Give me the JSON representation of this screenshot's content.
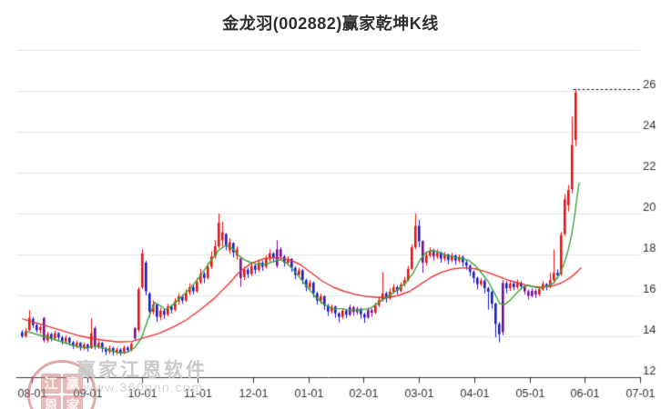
{
  "page": {
    "title": "金龙羽(002882)赢家乾坤K线"
  },
  "watermark": {
    "seal_chars": [
      "江",
      "赢",
      "恩",
      "家"
    ],
    "line1": "赢家江恩软件",
    "line2": "www.360gnn.com"
  },
  "chart_data": {
    "type": "candlestick",
    "title": "金龙羽(002882)赢家乾坤K线",
    "x_tick_labels": [
      "08-01",
      "09-01",
      "10-01",
      "11-01",
      "12-01",
      "01-01",
      "02-01",
      "03-01",
      "04-01",
      "05-01",
      "06-01",
      "07-01"
    ],
    "y_tick_labels": [
      26,
      24,
      22,
      20,
      18,
      16,
      14,
      12
    ],
    "y_grid_values": [
      14,
      16,
      18,
      20,
      22,
      24,
      26,
      28
    ],
    "ylim": [
      12,
      28
    ],
    "grid": true,
    "legend": "none",
    "dashed_high_line": 26.08,
    "colors": {
      "up": "#ee1111",
      "down": "#1a1ace",
      "special": "#7a0c96",
      "ma_fast_green": "#3ca43c",
      "ma_slow_red": "#e83333",
      "grid": "#e4e4e4",
      "axis": "#333333",
      "label": "#333333",
      "dashed": "#111111",
      "background": "#ffffff"
    },
    "candles": [
      [
        14.2,
        14.0,
        13.92,
        14.3
      ],
      [
        14.0,
        14.25,
        13.95,
        14.4
      ],
      [
        14.3,
        14.9,
        14.25,
        15.28
      ],
      [
        14.85,
        14.55,
        14.4,
        14.95
      ],
      [
        14.55,
        14.3,
        14.18,
        14.62
      ],
      [
        14.3,
        14.45,
        14.12,
        14.55
      ],
      [
        14.9,
        13.8,
        13.7,
        14.95
      ],
      [
        13.8,
        14.1,
        13.68,
        14.22
      ],
      [
        14.1,
        13.9,
        13.75,
        14.18
      ],
      [
        13.9,
        14.15,
        13.82,
        14.28
      ],
      [
        14.15,
        13.95,
        13.8,
        14.2
      ],
      [
        13.95,
        13.75,
        13.6,
        14.02
      ],
      [
        13.75,
        13.92,
        13.62,
        14.05
      ],
      [
        13.92,
        13.7,
        13.55,
        13.98
      ],
      [
        13.7,
        13.52,
        13.38,
        13.78
      ],
      [
        13.52,
        13.68,
        13.42,
        13.8
      ],
      [
        13.68,
        13.45,
        13.3,
        13.72
      ],
      [
        13.45,
        13.6,
        13.32,
        13.7
      ],
      [
        13.6,
        13.42,
        13.25,
        13.65
      ],
      [
        13.42,
        14.15,
        13.38,
        14.88
      ],
      [
        14.4,
        13.5,
        13.35,
        14.48
      ],
      [
        13.5,
        13.68,
        13.38,
        13.8
      ],
      [
        13.68,
        13.4,
        13.22,
        13.72
      ],
      [
        13.4,
        13.25,
        13.08,
        13.48
      ],
      [
        13.25,
        13.42,
        13.15,
        13.55
      ],
      [
        13.42,
        13.22,
        13.05,
        13.5
      ],
      [
        13.22,
        13.35,
        13.1,
        13.45
      ],
      [
        13.35,
        13.2,
        13.05,
        13.42
      ],
      [
        13.2,
        13.45,
        13.12,
        13.55
      ],
      [
        13.45,
        13.32,
        13.2,
        13.52
      ],
      [
        13.32,
        13.62,
        13.25,
        13.72
      ],
      [
        14.4,
        13.9,
        13.8,
        14.45
      ],
      [
        14.3,
        16.3,
        14.2,
        16.4
      ],
      [
        16.4,
        18.05,
        16.3,
        18.25
      ],
      [
        17.6,
        16.2,
        16.0,
        17.7
      ],
      [
        16.1,
        15.2,
        14.95,
        16.15
      ],
      [
        15.2,
        15.55,
        15.05,
        15.75
      ],
      [
        15.55,
        14.95,
        14.7,
        15.6
      ],
      [
        14.95,
        15.25,
        14.78,
        15.4
      ],
      [
        15.25,
        15.05,
        14.85,
        15.35
      ],
      [
        15.05,
        15.45,
        14.98,
        15.6
      ],
      [
        15.45,
        15.3,
        15.1,
        15.55
      ],
      [
        15.3,
        15.7,
        15.22,
        15.85
      ],
      [
        15.7,
        15.95,
        15.55,
        16.1
      ],
      [
        15.95,
        15.75,
        15.58,
        16.05
      ],
      [
        15.75,
        16.15,
        15.68,
        16.3
      ],
      [
        16.15,
        16.4,
        16.0,
        16.6
      ],
      [
        16.4,
        16.2,
        16.05,
        16.5
      ],
      [
        16.2,
        16.65,
        16.12,
        16.85
      ],
      [
        16.65,
        17.05,
        16.55,
        17.3
      ],
      [
        17.05,
        16.85,
        16.6,
        17.15
      ],
      [
        16.85,
        17.4,
        16.78,
        17.6
      ],
      [
        17.4,
        17.9,
        17.3,
        18.15
      ],
      [
        17.9,
        18.4,
        17.8,
        18.7
      ],
      [
        18.4,
        19.55,
        18.3,
        20.0
      ],
      [
        18.7,
        19.1,
        18.4,
        19.6
      ],
      [
        19.0,
        18.45,
        18.2,
        19.05
      ],
      [
        18.2,
        18.6,
        18.05,
        18.8
      ],
      [
        18.55,
        18.1,
        17.85,
        18.6
      ],
      [
        17.95,
        18.25,
        17.75,
        18.4
      ],
      [
        17.8,
        16.85,
        16.42,
        17.85
      ],
      [
        16.9,
        17.25,
        16.75,
        17.4
      ],
      [
        17.25,
        17.05,
        16.85,
        17.35
      ],
      [
        17.05,
        17.45,
        16.95,
        17.6
      ],
      [
        17.45,
        17.25,
        17.05,
        17.55
      ],
      [
        17.25,
        17.6,
        17.15,
        17.75
      ],
      [
        17.6,
        17.4,
        17.2,
        17.7
      ],
      [
        17.4,
        17.8,
        17.32,
        17.95
      ],
      [
        17.8,
        18.05,
        17.65,
        18.25
      ],
      [
        18.05,
        17.85,
        17.62,
        18.12
      ],
      [
        17.45,
        18.25,
        17.35,
        18.7
      ],
      [
        18.25,
        17.9,
        17.7,
        18.35
      ],
      [
        17.9,
        17.6,
        17.4,
        17.98
      ],
      [
        17.6,
        17.78,
        17.45,
        17.92
      ],
      [
        17.78,
        17.35,
        17.15,
        17.82
      ],
      [
        17.35,
        17.0,
        16.8,
        17.42
      ],
      [
        17.0,
        17.22,
        16.88,
        17.35
      ],
      [
        17.22,
        16.75,
        16.55,
        17.28
      ],
      [
        16.75,
        16.4,
        16.2,
        16.82
      ],
      [
        16.4,
        16.62,
        16.28,
        16.75
      ],
      [
        16.62,
        16.1,
        15.9,
        16.68
      ],
      [
        16.1,
        15.75,
        15.55,
        16.18
      ],
      [
        15.75,
        15.95,
        15.6,
        16.08
      ],
      [
        15.95,
        15.5,
        15.3,
        16.0
      ],
      [
        15.5,
        15.22,
        15.0,
        15.58
      ],
      [
        15.22,
        15.45,
        15.1,
        15.55
      ],
      [
        15.45,
        15.12,
        14.9,
        15.5
      ],
      [
        15.12,
        14.95,
        14.68,
        15.18
      ],
      [
        14.95,
        15.25,
        14.85,
        15.38
      ],
      [
        15.25,
        15.05,
        14.88,
        15.32
      ],
      [
        15.05,
        15.42,
        14.98,
        15.55
      ],
      [
        15.42,
        15.18,
        15.0,
        15.48
      ],
      [
        15.18,
        15.35,
        15.05,
        15.45
      ],
      [
        15.35,
        15.08,
        14.85,
        15.4
      ],
      [
        15.08,
        14.92,
        14.65,
        15.15
      ],
      [
        14.92,
        15.28,
        14.85,
        15.4
      ],
      [
        15.28,
        15.15,
        14.95,
        15.35
      ],
      [
        15.15,
        15.52,
        15.08,
        15.65
      ],
      [
        15.52,
        15.78,
        15.42,
        15.95
      ],
      [
        15.78,
        16.1,
        15.7,
        17.15
      ],
      [
        16.1,
        15.85,
        15.65,
        16.18
      ],
      [
        15.85,
        16.18,
        15.78,
        16.35
      ],
      [
        16.18,
        16.4,
        16.08,
        16.55
      ],
      [
        16.4,
        16.22,
        16.05,
        16.48
      ],
      [
        16.22,
        16.52,
        16.15,
        16.65
      ],
      [
        16.52,
        16.75,
        16.42,
        16.9
      ],
      [
        16.75,
        17.3,
        16.68,
        17.45
      ],
      [
        17.3,
        18.35,
        17.25,
        18.5
      ],
      [
        18.35,
        19.4,
        18.25,
        20.0
      ],
      [
        19.4,
        18.65,
        18.35,
        19.7
      ],
      [
        18.65,
        17.6,
        17.1,
        18.7
      ],
      [
        17.6,
        17.95,
        17.45,
        18.15
      ],
      [
        17.95,
        18.2,
        17.85,
        18.35
      ],
      [
        18.2,
        17.9,
        17.7,
        18.28
      ],
      [
        17.9,
        18.1,
        17.78,
        18.25
      ],
      [
        18.1,
        17.8,
        17.6,
        18.15
      ],
      [
        17.8,
        18.0,
        17.68,
        18.12
      ],
      [
        18.0,
        17.72,
        17.52,
        18.05
      ],
      [
        17.72,
        17.95,
        17.62,
        18.08
      ],
      [
        17.95,
        17.7,
        17.5,
        18.0
      ],
      [
        17.7,
        17.88,
        17.58,
        18.0
      ],
      [
        17.88,
        17.62,
        17.42,
        17.95
      ],
      [
        17.62,
        17.45,
        17.25,
        17.7
      ],
      [
        17.45,
        17.15,
        16.95,
        17.52
      ],
      [
        17.15,
        16.85,
        16.6,
        17.22
      ],
      [
        16.85,
        16.55,
        16.3,
        16.92
      ],
      [
        16.55,
        16.72,
        16.45,
        16.85
      ],
      [
        16.72,
        16.35,
        16.1,
        16.78
      ],
      [
        16.35,
        16.18,
        15.3,
        16.42
      ],
      [
        16.18,
        15.6,
        15.35,
        16.25
      ],
      [
        15.6,
        14.6,
        13.95,
        15.65
      ],
      [
        14.6,
        14.1,
        13.7,
        14.7
      ],
      [
        14.2,
        16.6,
        14.05,
        16.75
      ],
      [
        16.6,
        16.35,
        16.1,
        16.7
      ],
      [
        16.35,
        16.58,
        16.22,
        16.72
      ],
      [
        16.58,
        16.4,
        16.25,
        16.68
      ],
      [
        16.4,
        16.62,
        16.3,
        16.78
      ],
      [
        16.62,
        16.45,
        16.28,
        16.7
      ],
      [
        16.45,
        16.2,
        16.05,
        16.52
      ],
      [
        16.2,
        15.98,
        15.8,
        16.28
      ],
      [
        15.98,
        16.22,
        15.9,
        16.35
      ],
      [
        16.22,
        16.05,
        15.88,
        16.3
      ],
      [
        16.05,
        16.3,
        15.95,
        16.42
      ],
      [
        16.3,
        16.55,
        16.22,
        16.68
      ],
      [
        16.55,
        16.42,
        16.25,
        16.6
      ],
      [
        16.42,
        16.75,
        16.35,
        17.1
      ],
      [
        16.75,
        17.1,
        16.65,
        18.25
      ],
      [
        17.1,
        17.0,
        16.82,
        17.28
      ],
      [
        17.05,
        18.95,
        16.95,
        19.1
      ],
      [
        19.0,
        20.7,
        18.9,
        20.95
      ],
      [
        20.4,
        21.15,
        20.1,
        21.4
      ],
      [
        21.2,
        23.35,
        21.0,
        24.75
      ],
      [
        23.6,
        25.92,
        23.3,
        26.08
      ]
    ],
    "purple_indices": [
      6,
      20,
      31,
      60,
      70,
      71,
      90,
      91,
      92,
      95,
      96,
      110,
      113,
      132,
      138,
      139,
      140,
      141
    ],
    "ma_fast_green_points": [
      [
        1,
        14.25
      ],
      [
        4,
        14.1
      ],
      [
        7.8,
        13.9
      ],
      [
        11.5,
        13.7
      ],
      [
        15.2,
        13.5
      ],
      [
        17.8,
        13.42
      ],
      [
        19.8,
        13.52
      ],
      [
        22,
        13.45
      ],
      [
        24.5,
        13.3
      ],
      [
        27,
        13.18
      ],
      [
        29,
        13.22
      ],
      [
        31,
        13.45
      ],
      [
        32.8,
        13.9
      ],
      [
        34,
        14.5
      ],
      [
        35.2,
        15.1
      ],
      [
        36.5,
        15.65
      ],
      [
        38,
        15.5
      ],
      [
        39.5,
        15.3
      ],
      [
        41.5,
        15.55
      ],
      [
        44,
        15.95
      ],
      [
        46.5,
        16.4
      ],
      [
        49,
        16.95
      ],
      [
        51.5,
        17.6
      ],
      [
        54,
        18.2
      ],
      [
        56,
        18.45
      ],
      [
        57.8,
        18.3
      ],
      [
        59.5,
        17.95
      ],
      [
        61.5,
        17.7
      ],
      [
        64,
        17.55
      ],
      [
        66.5,
        17.5
      ],
      [
        69,
        17.65
      ],
      [
        71,
        17.75
      ],
      [
        73,
        17.55
      ],
      [
        75.5,
        17.05
      ],
      [
        78,
        16.5
      ],
      [
        80.5,
        15.95
      ],
      [
        83,
        15.55
      ],
      [
        85.5,
        15.35
      ],
      [
        88,
        15.35
      ],
      [
        90.5,
        15.25
      ],
      [
        93,
        15.3
      ],
      [
        95.5,
        15.35
      ],
      [
        98,
        15.65
      ],
      [
        100.5,
        15.95
      ],
      [
        103,
        16.25
      ],
      [
        105.5,
        16.65
      ],
      [
        107.5,
        17.1
      ],
      [
        109.2,
        17.7
      ],
      [
        111,
        18.1
      ],
      [
        112.8,
        18.2
      ],
      [
        114.8,
        18.1
      ],
      [
        116.8,
        17.95
      ],
      [
        119,
        17.85
      ],
      [
        121,
        17.8
      ],
      [
        122.8,
        17.7
      ],
      [
        124.5,
        17.45
      ],
      [
        126.2,
        17.1
      ],
      [
        128,
        16.7
      ],
      [
        129.8,
        16.1
      ],
      [
        131.2,
        15.6
      ],
      [
        132.5,
        15.55
      ],
      [
        134,
        15.75
      ],
      [
        135.8,
        16.1
      ],
      [
        137.5,
        16.4
      ],
      [
        139,
        16.5
      ],
      [
        140.8,
        16.4
      ],
      [
        142.5,
        16.35
      ],
      [
        144.2,
        16.45
      ],
      [
        146,
        16.6
      ],
      [
        147.5,
        17.0
      ],
      [
        148.8,
        17.5
      ],
      [
        150,
        18.2
      ],
      [
        151,
        19.0
      ],
      [
        151.8,
        19.9
      ],
      [
        152.5,
        20.9
      ],
      [
        153,
        21.5
      ]
    ],
    "ma_slow_red_points": [
      [
        0.2,
        14.85
      ],
      [
        4,
        14.65
      ],
      [
        7.8,
        14.45
      ],
      [
        11.5,
        14.25
      ],
      [
        15.2,
        14.05
      ],
      [
        19,
        13.9
      ],
      [
        22.8,
        13.8
      ],
      [
        26.5,
        13.72
      ],
      [
        30.2,
        13.75
      ],
      [
        34,
        13.95
      ],
      [
        37.8,
        14.15
      ],
      [
        41.5,
        14.45
      ],
      [
        45.2,
        14.8
      ],
      [
        49,
        15.3
      ],
      [
        52.8,
        15.85
      ],
      [
        56.5,
        16.5
      ],
      [
        59.5,
        17.1
      ],
      [
        62.8,
        17.55
      ],
      [
        66.5,
        17.8
      ],
      [
        70.2,
        17.85
      ],
      [
        73.5,
        17.75
      ],
      [
        76.5,
        17.5
      ],
      [
        79.5,
        17.1
      ],
      [
        82.5,
        16.7
      ],
      [
        85.5,
        16.4
      ],
      [
        88.5,
        16.2
      ],
      [
        91.5,
        16.05
      ],
      [
        94.5,
        15.95
      ],
      [
        97.5,
        15.9
      ],
      [
        100.5,
        15.9
      ],
      [
        103.5,
        16.0
      ],
      [
        106.5,
        16.2
      ],
      [
        109.5,
        16.55
      ],
      [
        112.5,
        16.9
      ],
      [
        115.5,
        17.15
      ],
      [
        118.5,
        17.3
      ],
      [
        121.5,
        17.35
      ],
      [
        124.5,
        17.3
      ],
      [
        127.5,
        17.15
      ],
      [
        130.5,
        16.95
      ],
      [
        133.5,
        16.75
      ],
      [
        136.5,
        16.6
      ],
      [
        139.5,
        16.45
      ],
      [
        142.5,
        16.4
      ],
      [
        145.5,
        16.45
      ],
      [
        148,
        16.6
      ],
      [
        150.5,
        16.85
      ],
      [
        152.5,
        17.15
      ],
      [
        153.5,
        17.35
      ]
    ]
  }
}
